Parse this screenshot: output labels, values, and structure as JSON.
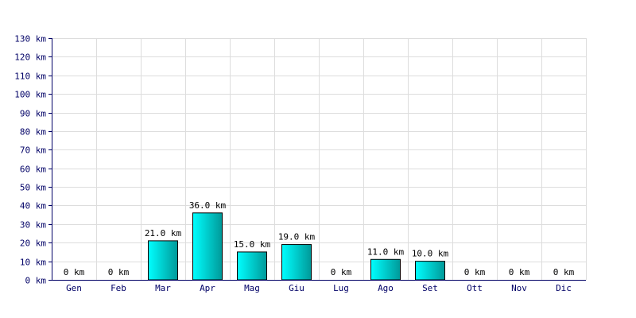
{
  "chart_data": {
    "type": "bar",
    "categories": [
      "Gen",
      "Feb",
      "Mar",
      "Apr",
      "Mag",
      "Giu",
      "Lug",
      "Ago",
      "Set",
      "Ott",
      "Nov",
      "Dic"
    ],
    "values": [
      0,
      0,
      21,
      36,
      15,
      19,
      0,
      11,
      10,
      0,
      0,
      0
    ],
    "data_labels": [
      "0 km",
      "0 km",
      "21.0 km",
      "36.0 km",
      "15.0 km",
      "19.0 km",
      "0 km",
      "11.0 km",
      "10.0 km",
      "0 km",
      "0 km",
      "0 km"
    ],
    "y_ticks": [
      0,
      10,
      20,
      30,
      40,
      50,
      60,
      70,
      80,
      90,
      100,
      110,
      120,
      130
    ],
    "y_tick_labels": [
      "0 km",
      "10 km",
      "20 km",
      "30 km",
      "40 km",
      "50 km",
      "60 km",
      "70 km",
      "80 km",
      "90 km",
      "100 km",
      "110 km",
      "120 km",
      "130 km"
    ],
    "ylim": [
      0,
      130
    ],
    "title": "",
    "xlabel": "",
    "ylabel": "",
    "grid": true,
    "legend": "none",
    "colors": {
      "bar_light": "#00ffff",
      "bar_dark": "#009999",
      "bar_stroke": "#000000",
      "grid": "#dddddd",
      "axis": "#000066"
    }
  }
}
